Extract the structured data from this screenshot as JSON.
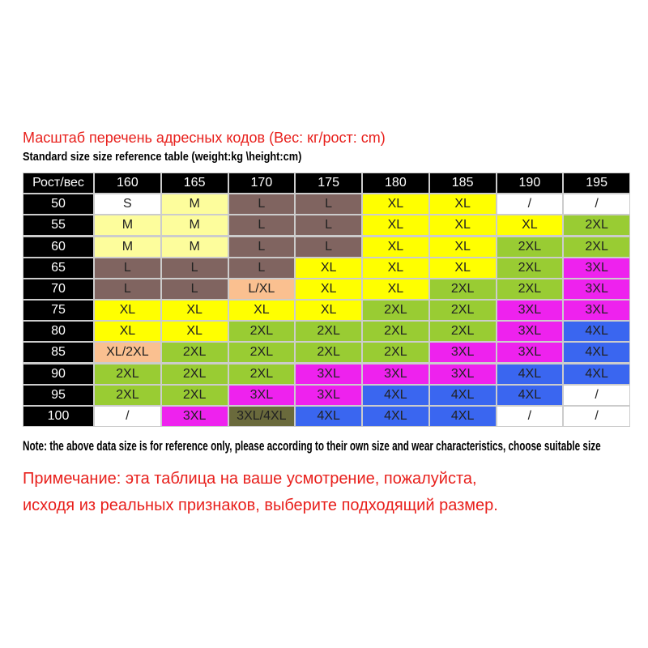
{
  "header": {
    "title": "Масштаб перечень адресных кодов (Вес: кг/рост: cm)",
    "subtitle": "Standard size size reference table (weight:kg \\height:cm)"
  },
  "table": {
    "corner": "Рост/вес",
    "columns": [
      160,
      165,
      170,
      175,
      180,
      185,
      190,
      195
    ],
    "row_labels": [
      50,
      55,
      60,
      65,
      70,
      75,
      80,
      85,
      90,
      95,
      100
    ],
    "rows": [
      [
        "S",
        "M",
        "L",
        "L",
        "XL",
        "XL",
        "/",
        "/"
      ],
      [
        "M",
        "M",
        "L",
        "L",
        "XL",
        "XL",
        "XL",
        "2XL"
      ],
      [
        "M",
        "M",
        "L",
        "L",
        "XL",
        "XL",
        "2XL",
        "2XL"
      ],
      [
        "L",
        "L",
        "L",
        "XL",
        "XL",
        "XL",
        "2XL",
        "3XL"
      ],
      [
        "L",
        "L",
        "L/XL",
        "XL",
        "XL",
        "2XL",
        "2XL",
        "3XL"
      ],
      [
        "XL",
        "XL",
        "XL",
        "XL",
        "2XL",
        "2XL",
        "3XL",
        "3XL"
      ],
      [
        "XL",
        "XL",
        "2XL",
        "2XL",
        "2XL",
        "2XL",
        "3XL",
        "4XL"
      ],
      [
        "XL/2XL",
        "2XL",
        "2XL",
        "2XL",
        "2XL",
        "3XL",
        "3XL",
        "4XL"
      ],
      [
        "2XL",
        "2XL",
        "2XL",
        "3XL",
        "3XL",
        "3XL",
        "4XL",
        "4XL"
      ],
      [
        "2XL",
        "2XL",
        "3XL",
        "3XL",
        "4XL",
        "4XL",
        "4XL",
        "/"
      ],
      [
        "/",
        "3XL",
        "3XL/4XL",
        "4XL",
        "4XL",
        "4XL",
        "/",
        "/"
      ]
    ],
    "colors": {
      "S": "#ffffff",
      "M": "#fdfd9c",
      "L": "#806460",
      "XL": "#ffff00",
      "2XL": "#99cc33",
      "3XL": "#ee22ee",
      "4XL": "#3a66f0",
      "/": "#ffffff",
      "L/XL": "#fac090",
      "XL/2XL": "#fac090",
      "3XL/4XL": "#6a6a3c"
    }
  },
  "footer": {
    "note": "Note: the above data size is for reference only, please according to their own size and wear characteristics, choose suitable size",
    "note_ru_1": "Примечание: эта таблица на ваше усмотрение, пожалуйста,",
    "note_ru_2": "исходя из реальных признаков, выберите подходящий размер."
  }
}
